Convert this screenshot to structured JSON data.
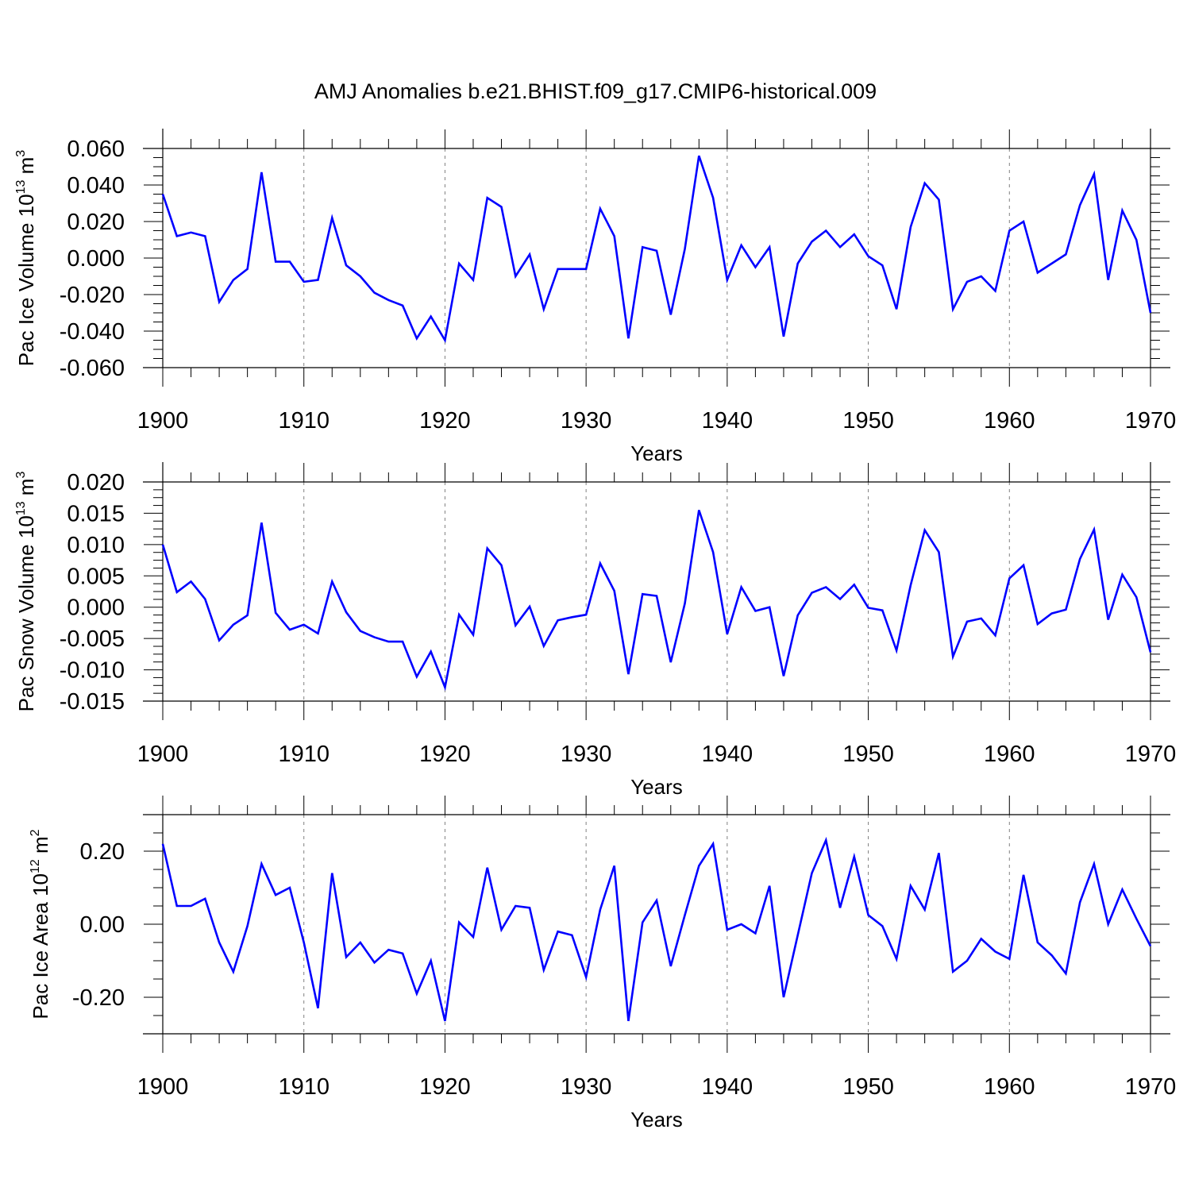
{
  "figure": {
    "title": "AMJ Anomalies b.e21.BHIST.f09_g17.CMIP6-historical.009",
    "line_color": "#0000ff"
  },
  "chart_data": [
    {
      "type": "line",
      "title": "",
      "xlabel": "Years",
      "ylabel": {
        "main": "Pac Ice Volume 10",
        "exp": "13",
        "unit": " m",
        "unit_exp": "3"
      },
      "xlim": [
        1900,
        1970
      ],
      "ylim": [
        -0.06,
        0.06
      ],
      "x_ticks": [
        1900,
        1910,
        1920,
        1930,
        1940,
        1950,
        1960,
        1970
      ],
      "y_ticks": [
        "0.060",
        "0.040",
        "0.020",
        "0.000",
        "-0.020",
        "-0.040",
        "-0.060"
      ],
      "y_tick_values": [
        0.06,
        0.04,
        0.02,
        0.0,
        -0.02,
        -0.04,
        -0.06
      ],
      "grid": "vertical dashed at major x ticks",
      "x_start": 1900,
      "series": [
        {
          "values": [
            0.035,
            0.012,
            0.014,
            0.012,
            -0.024,
            -0.012,
            -0.006,
            0.047,
            -0.002,
            -0.002,
            -0.013,
            -0.012,
            0.022,
            -0.004,
            -0.01,
            -0.019,
            -0.023,
            -0.026,
            -0.044,
            -0.032,
            -0.045,
            -0.003,
            -0.012,
            0.033,
            0.028,
            -0.01,
            0.002,
            -0.028,
            -0.006,
            -0.006,
            -0.006,
            0.027,
            0.012,
            -0.044,
            0.006,
            0.004,
            -0.031,
            0.005,
            0.056,
            0.033,
            -0.012,
            0.007,
            -0.005,
            0.006,
            -0.043,
            -0.003,
            0.009,
            0.015,
            0.006,
            0.013,
            0.001,
            -0.004,
            -0.028,
            0.017,
            0.041,
            0.032,
            -0.028,
            -0.013,
            -0.01,
            -0.018,
            0.015,
            0.02,
            -0.008,
            -0.003,
            0.002,
            0.029,
            0.046,
            -0.012,
            0.026,
            0.01,
            -0.03
          ]
        }
      ]
    },
    {
      "type": "line",
      "title": "",
      "xlabel": "Years",
      "ylabel": {
        "main": "Pac Snow Volume 10",
        "exp": "13",
        "unit": " m",
        "unit_exp": "3"
      },
      "xlim": [
        1900,
        1970
      ],
      "ylim": [
        -0.015,
        0.02
      ],
      "x_ticks": [
        1900,
        1910,
        1920,
        1930,
        1940,
        1950,
        1960,
        1970
      ],
      "y_ticks": [
        "0.020",
        "0.015",
        "0.010",
        "0.005",
        "0.000",
        "-0.005",
        "-0.010",
        "-0.015"
      ],
      "y_tick_values": [
        0.02,
        0.015,
        0.01,
        0.005,
        0.0,
        -0.005,
        -0.01,
        -0.015
      ],
      "grid": "vertical dashed at major x ticks",
      "x_start": 1900,
      "series": [
        {
          "values": [
            0.01,
            0.0024,
            0.0041,
            0.0013,
            -0.0053,
            -0.0028,
            -0.0013,
            0.0135,
            -0.0009,
            -0.0036,
            -0.0028,
            -0.0042,
            0.0041,
            -0.0008,
            -0.0038,
            -0.0048,
            -0.0055,
            -0.0055,
            -0.0111,
            -0.0071,
            -0.0128,
            -0.0012,
            -0.0044,
            0.0094,
            0.0067,
            -0.0029,
            0.0001,
            -0.0062,
            -0.0021,
            -0.0016,
            -0.0012,
            0.007,
            0.0026,
            -0.0107,
            0.0021,
            0.0018,
            -0.0088,
            0.0006,
            0.0155,
            0.0088,
            -0.0043,
            0.0032,
            -0.0006,
            0.0,
            -0.011,
            -0.0013,
            0.0023,
            0.0032,
            0.0013,
            0.0036,
            -0.0001,
            -0.0005,
            -0.0069,
            0.0035,
            0.0123,
            0.0088,
            -0.0079,
            -0.0023,
            -0.0018,
            -0.0045,
            0.0046,
            0.0067,
            -0.0027,
            -0.001,
            -0.0004,
            0.0077,
            0.0124,
            -0.002,
            0.0052,
            0.0016,
            -0.0072
          ]
        }
      ]
    },
    {
      "type": "line",
      "title": "",
      "xlabel": "Years",
      "ylabel": {
        "main": "Pac Ice Area 10",
        "exp": "12",
        "unit": " m",
        "unit_exp": "2"
      },
      "xlim": [
        1900,
        1970
      ],
      "ylim": [
        -0.3,
        0.3
      ],
      "x_ticks": [
        1900,
        1910,
        1920,
        1930,
        1940,
        1950,
        1960,
        1970
      ],
      "y_ticks": [
        "0.20",
        "0.00",
        "-0.20"
      ],
      "y_tick_values": [
        0.2,
        0.0,
        -0.2
      ],
      "grid": "vertical dashed at major x ticks",
      "x_start": 1900,
      "series": [
        {
          "values": [
            0.22,
            0.05,
            0.05,
            0.07,
            -0.05,
            -0.13,
            -0.005,
            0.165,
            0.08,
            0.1,
            -0.05,
            -0.23,
            0.14,
            -0.09,
            -0.05,
            -0.105,
            -0.07,
            -0.08,
            -0.19,
            -0.1,
            -0.265,
            0.005,
            -0.035,
            0.155,
            -0.015,
            0.05,
            0.045,
            -0.125,
            -0.02,
            -0.03,
            -0.145,
            0.04,
            0.16,
            -0.265,
            0.005,
            0.065,
            -0.115,
            0.025,
            0.16,
            0.22,
            -0.015,
            0.0,
            -0.025,
            0.105,
            -0.2,
            -0.03,
            0.14,
            0.23,
            0.045,
            0.185,
            0.025,
            -0.005,
            -0.095,
            0.105,
            0.04,
            0.195,
            -0.13,
            -0.1,
            -0.04,
            -0.075,
            -0.095,
            0.135,
            -0.05,
            -0.085,
            -0.135,
            0.06,
            0.165,
            0.0,
            0.095,
            0.015,
            -0.06
          ]
        }
      ]
    }
  ]
}
